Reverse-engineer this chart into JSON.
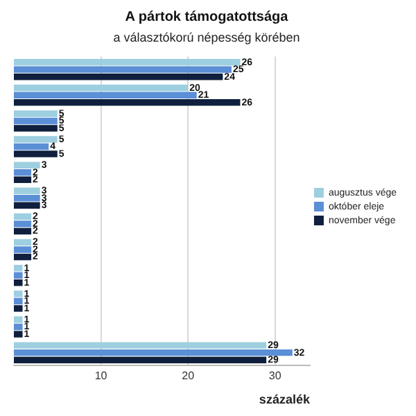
{
  "chart_data": {
    "type": "bar",
    "orientation": "horizontal",
    "title": "A pártok támogatottsága",
    "subtitle": "a választókorú népesség körében",
    "xlabel": "százalék",
    "categories": [
      null,
      null,
      null,
      null,
      null,
      null,
      null,
      null,
      null,
      null,
      null,
      null
    ],
    "series": [
      {
        "name": "augusztus vége",
        "color": "#9ecfe0",
        "values": [
          26,
          20,
          5,
          5,
          3,
          3,
          2,
          2,
          1,
          1,
          1,
          29
        ]
      },
      {
        "name": "október eleje",
        "color": "#5b8fd6",
        "values": [
          25,
          21,
          5,
          4,
          2,
          3,
          2,
          2,
          1,
          1,
          1,
          32
        ]
      },
      {
        "name": "november vége",
        "color": "#0f1f3d",
        "values": [
          24,
          26,
          5,
          5,
          2,
          3,
          2,
          2,
          1,
          1,
          1,
          29
        ]
      }
    ],
    "xlim": [
      0,
      34
    ],
    "xticks": [
      10,
      20,
      30
    ],
    "grid": "x",
    "legend": "right",
    "data_labels": true,
    "tick_labels": "x"
  }
}
